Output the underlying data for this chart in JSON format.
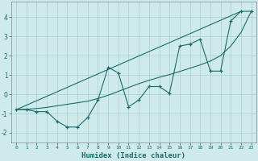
{
  "xlabel": "Humidex (Indice chaleur)",
  "xlim": [
    -0.5,
    23.5
  ],
  "ylim": [
    -2.5,
    4.8
  ],
  "yticks": [
    -2,
    -1,
    0,
    1,
    2,
    3,
    4
  ],
  "xticks": [
    0,
    1,
    2,
    3,
    4,
    5,
    6,
    7,
    8,
    9,
    10,
    11,
    12,
    13,
    14,
    15,
    16,
    17,
    18,
    19,
    20,
    21,
    22,
    23
  ],
  "background_color": "#ceeaea",
  "grid_color": "#aacece",
  "line_color": "#1a6b6b",
  "line1_x": [
    0,
    1,
    2,
    3,
    4,
    5,
    6,
    7,
    8,
    9,
    10,
    11,
    12,
    13,
    14,
    15,
    16,
    17,
    18,
    19,
    20,
    21,
    22,
    23
  ],
  "line1_y": [
    -0.8,
    -0.8,
    -0.9,
    -0.9,
    -1.4,
    -1.7,
    -1.7,
    -1.2,
    -0.3,
    1.4,
    1.1,
    -0.65,
    -0.3,
    0.4,
    0.4,
    0.05,
    2.5,
    2.6,
    2.85,
    1.2,
    1.2,
    3.8,
    4.3,
    4.3
  ],
  "line2_x": [
    0,
    22
  ],
  "line2_y": [
    -0.8,
    4.3
  ],
  "line3_x": [
    0,
    1,
    2,
    3,
    4,
    5,
    6,
    7,
    8,
    9,
    10,
    11,
    12,
    13,
    14,
    15,
    16,
    17,
    18,
    19,
    20,
    21,
    22,
    23
  ],
  "line3_y": [
    -0.8,
    -0.78,
    -0.74,
    -0.68,
    -0.6,
    -0.52,
    -0.44,
    -0.36,
    -0.22,
    -0.05,
    0.15,
    0.35,
    0.55,
    0.72,
    0.88,
    1.02,
    1.18,
    1.35,
    1.52,
    1.72,
    2.0,
    2.5,
    3.2,
    4.3
  ]
}
